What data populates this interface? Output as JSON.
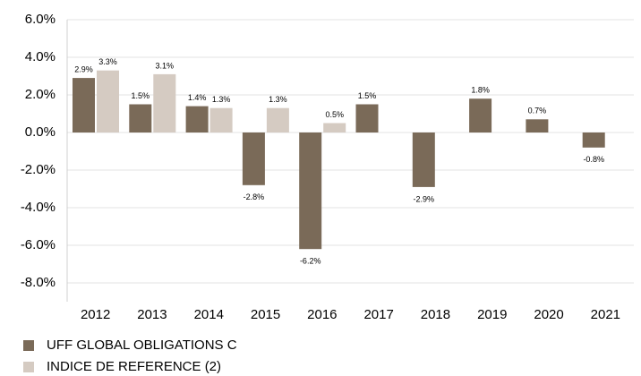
{
  "chart_data": {
    "type": "bar",
    "categories": [
      "2012",
      "2013",
      "2014",
      "2015",
      "2016",
      "2017",
      "2018",
      "2019",
      "2020",
      "2021"
    ],
    "series": [
      {
        "name": "UFF GLOBAL OBLIGATIONS C",
        "color": "#7a6a58",
        "values": [
          2.9,
          1.5,
          1.4,
          -2.8,
          -6.2,
          1.5,
          -2.9,
          1.8,
          0.7,
          -0.8
        ],
        "value_labels": [
          "2.9%",
          "1.5%",
          "1.4%",
          "-2.8%",
          "-6.2%",
          "1.5%",
          "-2.9%",
          "1.8%",
          "0.7%",
          "-0.8%"
        ]
      },
      {
        "name": "INDICE DE REFERENCE (2)",
        "color": "#d5cbc2",
        "values": [
          3.3,
          3.1,
          1.3,
          1.3,
          0.5,
          null,
          null,
          null,
          null,
          null
        ],
        "value_labels": [
          "3.3%",
          "3.1%",
          "1.3%",
          "1.3%",
          "0.5%",
          null,
          null,
          null,
          null,
          null
        ]
      }
    ],
    "ylim": [
      -9,
      6
    ],
    "yticks": [
      {
        "value": 6,
        "label": "6.0%"
      },
      {
        "value": 4,
        "label": "4.0%"
      },
      {
        "value": 2,
        "label": "2.0%"
      },
      {
        "value": 0,
        "label": "0.0%"
      },
      {
        "value": -2,
        "label": "-2.0%"
      },
      {
        "value": -4,
        "label": "-4.0%"
      },
      {
        "value": -6,
        "label": "-6.0%"
      },
      {
        "value": -8,
        "label": "-8.0%"
      }
    ],
    "grid": true,
    "legend": "bottom-left"
  }
}
